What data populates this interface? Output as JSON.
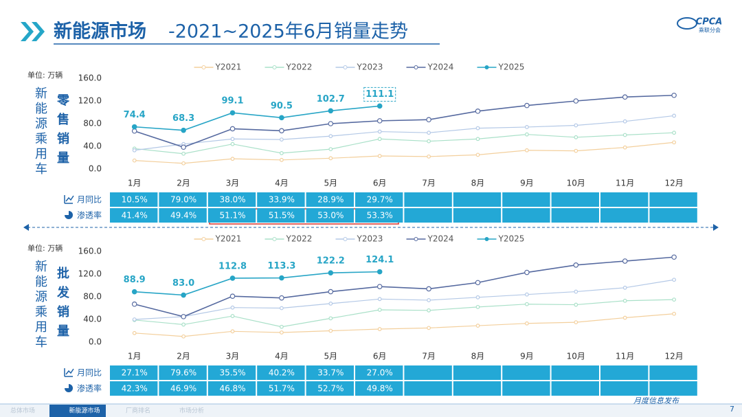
{
  "header": {
    "title_main": "新能源市场",
    "title_rest": "-2021~2025年6月销量走势",
    "logo": "CPCA",
    "logo_sub": "乘联分会"
  },
  "chart_data": [
    {
      "type": "line",
      "unit": "单位: 万辆",
      "side_label": "新能源乘用车",
      "metric": "零售销量",
      "legend": "top",
      "grid": false,
      "label_box": true,
      "categories": [
        "1月",
        "2月",
        "3月",
        "4月",
        "5月",
        "6月",
        "7月",
        "8月",
        "9月",
        "10月",
        "11月",
        "12月"
      ],
      "ylim": [
        0,
        160
      ],
      "yticks": [
        {
          "value": 0,
          "label": "0.0"
        },
        {
          "value": 40,
          "label": "40.0"
        },
        {
          "value": 80,
          "label": "80.0"
        },
        {
          "value": 120,
          "label": "120.0"
        },
        {
          "value": 160,
          "label": "160.0"
        }
      ],
      "series": [
        {
          "name": "Y2021",
          "color": "#f3cf9c",
          "values": [
            15,
            10,
            18,
            16,
            19,
            23,
            22,
            25,
            33,
            32,
            38,
            47
          ]
        },
        {
          "name": "Y2022",
          "color": "#a9e0c8",
          "values": [
            36,
            27,
            44,
            28,
            35,
            53,
            49,
            53,
            61,
            56,
            60,
            64
          ]
        },
        {
          "name": "Y2023",
          "color": "#b3c8e6",
          "values": [
            33,
            44,
            53,
            52,
            58,
            66,
            64,
            72,
            74,
            77,
            84,
            94
          ]
        },
        {
          "name": "Y2024",
          "color": "#55699f",
          "values": [
            67,
            38.5,
            71,
            67.5,
            80,
            85,
            87,
            102,
            112,
            120,
            127,
            130
          ]
        },
        {
          "name": "Y2025",
          "color": "#27a5c6",
          "values": [
            74.4,
            68.3,
            99.1,
            90.5,
            102.7,
            111.1,
            null,
            null,
            null,
            null,
            null,
            null
          ],
          "value_labels": [
            "74.4",
            "68.3",
            "99.1",
            "90.5",
            "102.7",
            "111.1",
            null,
            null,
            null,
            null,
            null,
            null
          ]
        }
      ],
      "table": {
        "rows": [
          {
            "label": "月同比",
            "values": [
              "10.5%",
              "79.0%",
              "38.0%",
              "33.9%",
              "28.9%",
              "29.7%"
            ]
          },
          {
            "label": "渗透率",
            "values": [
              "41.4%",
              "49.4%",
              "51.1%",
              "51.5%",
              "53.0%",
              "53.3%"
            ]
          }
        ]
      }
    },
    {
      "type": "line",
      "unit": "单位: 万辆",
      "side_label": "新能源乘用车",
      "metric": "批发销量",
      "legend": "top",
      "grid": false,
      "label_box": false,
      "categories": [
        "1月",
        "2月",
        "3月",
        "4月",
        "5月",
        "6月",
        "7月",
        "8月",
        "9月",
        "10月",
        "11月",
        "12月"
      ],
      "ylim": [
        0,
        160
      ],
      "yticks": [
        {
          "value": 0,
          "label": "0.0"
        },
        {
          "value": 40,
          "label": "40.0"
        },
        {
          "value": 80,
          "label": "80.0"
        },
        {
          "value": 120,
          "label": "120.0"
        },
        {
          "value": 160,
          "label": "160.0"
        }
      ],
      "series": [
        {
          "name": "Y2021",
          "color": "#f3cf9c",
          "values": [
            16,
            10,
            19,
            17,
            20,
            23,
            25,
            29,
            33,
            35,
            43,
            50
          ]
        },
        {
          "name": "Y2022",
          "color": "#a9e0c8",
          "values": [
            39,
            31,
            46,
            27,
            42,
            57,
            56,
            62,
            67,
            66,
            73,
            75
          ]
        },
        {
          "name": "Y2023",
          "color": "#b3c8e6",
          "values": [
            40,
            45,
            61,
            60,
            68,
            76,
            74,
            79,
            84,
            89,
            96,
            110
          ]
        },
        {
          "name": "Y2024",
          "color": "#55699f",
          "values": [
            67,
            45,
            81,
            78,
            89,
            98,
            94,
            105,
            123,
            136,
            143,
            150
          ]
        },
        {
          "name": "Y2025",
          "color": "#27a5c6",
          "values": [
            88.9,
            83.0,
            112.8,
            113.3,
            122.2,
            124.1,
            null,
            null,
            null,
            null,
            null,
            null
          ],
          "value_labels": [
            "88.9",
            "83.0",
            "112.8",
            "113.3",
            "122.2",
            "124.1",
            null,
            null,
            null,
            null,
            null,
            null
          ]
        }
      ],
      "table": {
        "rows": [
          {
            "label": "月同比",
            "values": [
              "27.1%",
              "79.6%",
              "35.5%",
              "40.2%",
              "33.7%",
              "27.0%"
            ]
          },
          {
            "label": "渗透率",
            "values": [
              "42.3%",
              "46.9%",
              "46.8%",
              "51.7%",
              "52.7%",
              "49.8%"
            ]
          }
        ]
      }
    }
  ],
  "footer": {
    "tabs": [
      "总体市场",
      "新能源市场",
      "厂商排名",
      "市场分析"
    ],
    "text": "月度信息发布",
    "page": "7"
  }
}
